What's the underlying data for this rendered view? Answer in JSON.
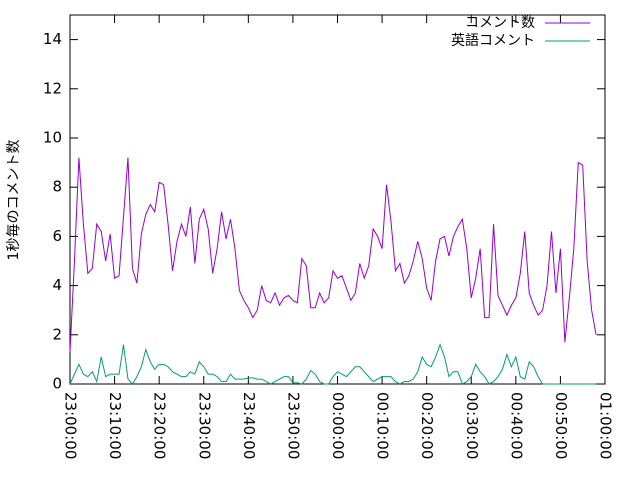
{
  "chart_data": {
    "type": "line",
    "y_label": "1秒毎のコメント数",
    "x": [
      0,
      1,
      2,
      3,
      4,
      5,
      6,
      7,
      8,
      9,
      10,
      11,
      12,
      13,
      14,
      15,
      16,
      17,
      18,
      19,
      20,
      21,
      22,
      23,
      24,
      25,
      26,
      27,
      28,
      29,
      30,
      31,
      32,
      33,
      34,
      35,
      36,
      37,
      38,
      39,
      40,
      41,
      42,
      43,
      44,
      45,
      46,
      47,
      48,
      49,
      50,
      51,
      52,
      53,
      54,
      55,
      56,
      57,
      58,
      59,
      60,
      61,
      62,
      63,
      64,
      65,
      66,
      67,
      68,
      69,
      70,
      71,
      72,
      73,
      74,
      75,
      76,
      77,
      78,
      79,
      80,
      81,
      82,
      83,
      84,
      85,
      86,
      87,
      88,
      89,
      90,
      91,
      92,
      93,
      94,
      95,
      96,
      97,
      98,
      99,
      100,
      101,
      102,
      103,
      104,
      105,
      106,
      107,
      108,
      109,
      110,
      111,
      112,
      113,
      114,
      115,
      116,
      117,
      118
    ],
    "series": [
      {
        "name": "コメント数",
        "color": "#9400d3",
        "values": [
          1.3,
          5.0,
          9.2,
          6.5,
          4.5,
          4.7,
          6.5,
          6.2,
          5.0,
          6.1,
          4.3,
          4.4,
          6.8,
          9.2,
          4.7,
          4.1,
          6.1,
          6.9,
          7.3,
          7.0,
          8.2,
          8.1,
          6.5,
          4.6,
          5.8,
          6.5,
          6.0,
          7.2,
          4.9,
          6.7,
          7.1,
          6.3,
          4.5,
          5.5,
          7.0,
          5.9,
          6.7,
          5.5,
          3.8,
          3.4,
          3.1,
          2.7,
          3.0,
          4.0,
          3.4,
          3.3,
          3.7,
          3.2,
          3.5,
          3.6,
          3.4,
          3.3,
          5.1,
          4.8,
          3.1,
          3.1,
          3.7,
          3.3,
          3.5,
          4.6,
          4.3,
          4.4,
          3.9,
          3.4,
          3.7,
          4.9,
          4.3,
          4.8,
          6.3,
          6.0,
          5.5,
          8.1,
          6.6,
          4.6,
          4.9,
          4.1,
          4.4,
          5.0,
          5.8,
          5.1,
          3.9,
          3.4,
          5.0,
          5.9,
          6.0,
          5.2,
          6.0,
          6.4,
          6.7,
          5.5,
          3.5,
          4.3,
          5.5,
          2.7,
          2.7,
          6.5,
          3.6,
          3.2,
          2.8,
          3.2,
          3.5,
          4.5,
          6.2,
          3.7,
          3.2,
          2.8,
          3.0,
          4.0,
          6.2,
          3.7,
          5.5,
          1.7,
          3.5,
          5.5,
          9.0,
          8.9,
          5.0,
          3.0,
          2.0
        ]
      },
      {
        "name": "英語コメント",
        "color": "#009e73",
        "values": [
          0,
          0.4,
          0.8,
          0.4,
          0.3,
          0.5,
          0.1,
          1.1,
          0.3,
          0.4,
          0.4,
          0.4,
          1.6,
          0.2,
          0.0,
          0.3,
          0.7,
          1.4,
          0.9,
          0.6,
          0.8,
          0.8,
          0.7,
          0.5,
          0.4,
          0.3,
          0.3,
          0.5,
          0.4,
          0.9,
          0.7,
          0.4,
          0.4,
          0.3,
          0.1,
          0.1,
          0.4,
          0.2,
          0.2,
          0.2,
          0.25,
          0.25,
          0.2,
          0.2,
          0.1,
          0.0,
          0.1,
          0.2,
          0.3,
          0.3,
          0.05,
          0.05,
          0.0,
          0.2,
          0.55,
          0.4,
          0.1,
          0.0,
          0.0,
          0.3,
          0.5,
          0.4,
          0.3,
          0.5,
          0.7,
          0.7,
          0.5,
          0.3,
          0.1,
          0.2,
          0.3,
          0.3,
          0.3,
          0.1,
          0.0,
          0.1,
          0.1,
          0.2,
          0.5,
          1.1,
          0.8,
          0.7,
          1.1,
          1.6,
          1.1,
          0.3,
          0.5,
          0.5,
          0.0,
          0.1,
          0.3,
          0.8,
          0.5,
          0.3,
          0.0,
          0.1,
          0.3,
          0.6,
          1.2,
          0.7,
          1.1,
          0.3,
          0.2,
          0.9,
          0.7,
          0.3,
          0.0,
          0.0,
          0.0,
          0.0,
          0,
          0,
          0,
          0,
          0,
          0,
          0,
          0,
          0
        ]
      }
    ],
    "xlim": [
      0,
      120
    ],
    "xticks": [
      {
        "value": 0,
        "label": "23:00:00"
      },
      {
        "value": 10,
        "label": "23:10:00"
      },
      {
        "value": 20,
        "label": "23:20:00"
      },
      {
        "value": 30,
        "label": "23:30:00"
      },
      {
        "value": 40,
        "label": "23:40:00"
      },
      {
        "value": 50,
        "label": "23:50:00"
      },
      {
        "value": 60,
        "label": "00:00:00"
      },
      {
        "value": 70,
        "label": "00:10:00"
      },
      {
        "value": 80,
        "label": "00:20:00"
      },
      {
        "value": 90,
        "label": "00:30:00"
      },
      {
        "value": 100,
        "label": "00:40:00"
      },
      {
        "value": 110,
        "label": "00:50:00"
      },
      {
        "value": 120,
        "label": "01:00:00"
      }
    ],
    "ylim": [
      0,
      15
    ],
    "yticks": [
      0,
      2,
      4,
      6,
      8,
      10,
      12,
      14
    ],
    "legend": "top-right",
    "grid": false
  }
}
